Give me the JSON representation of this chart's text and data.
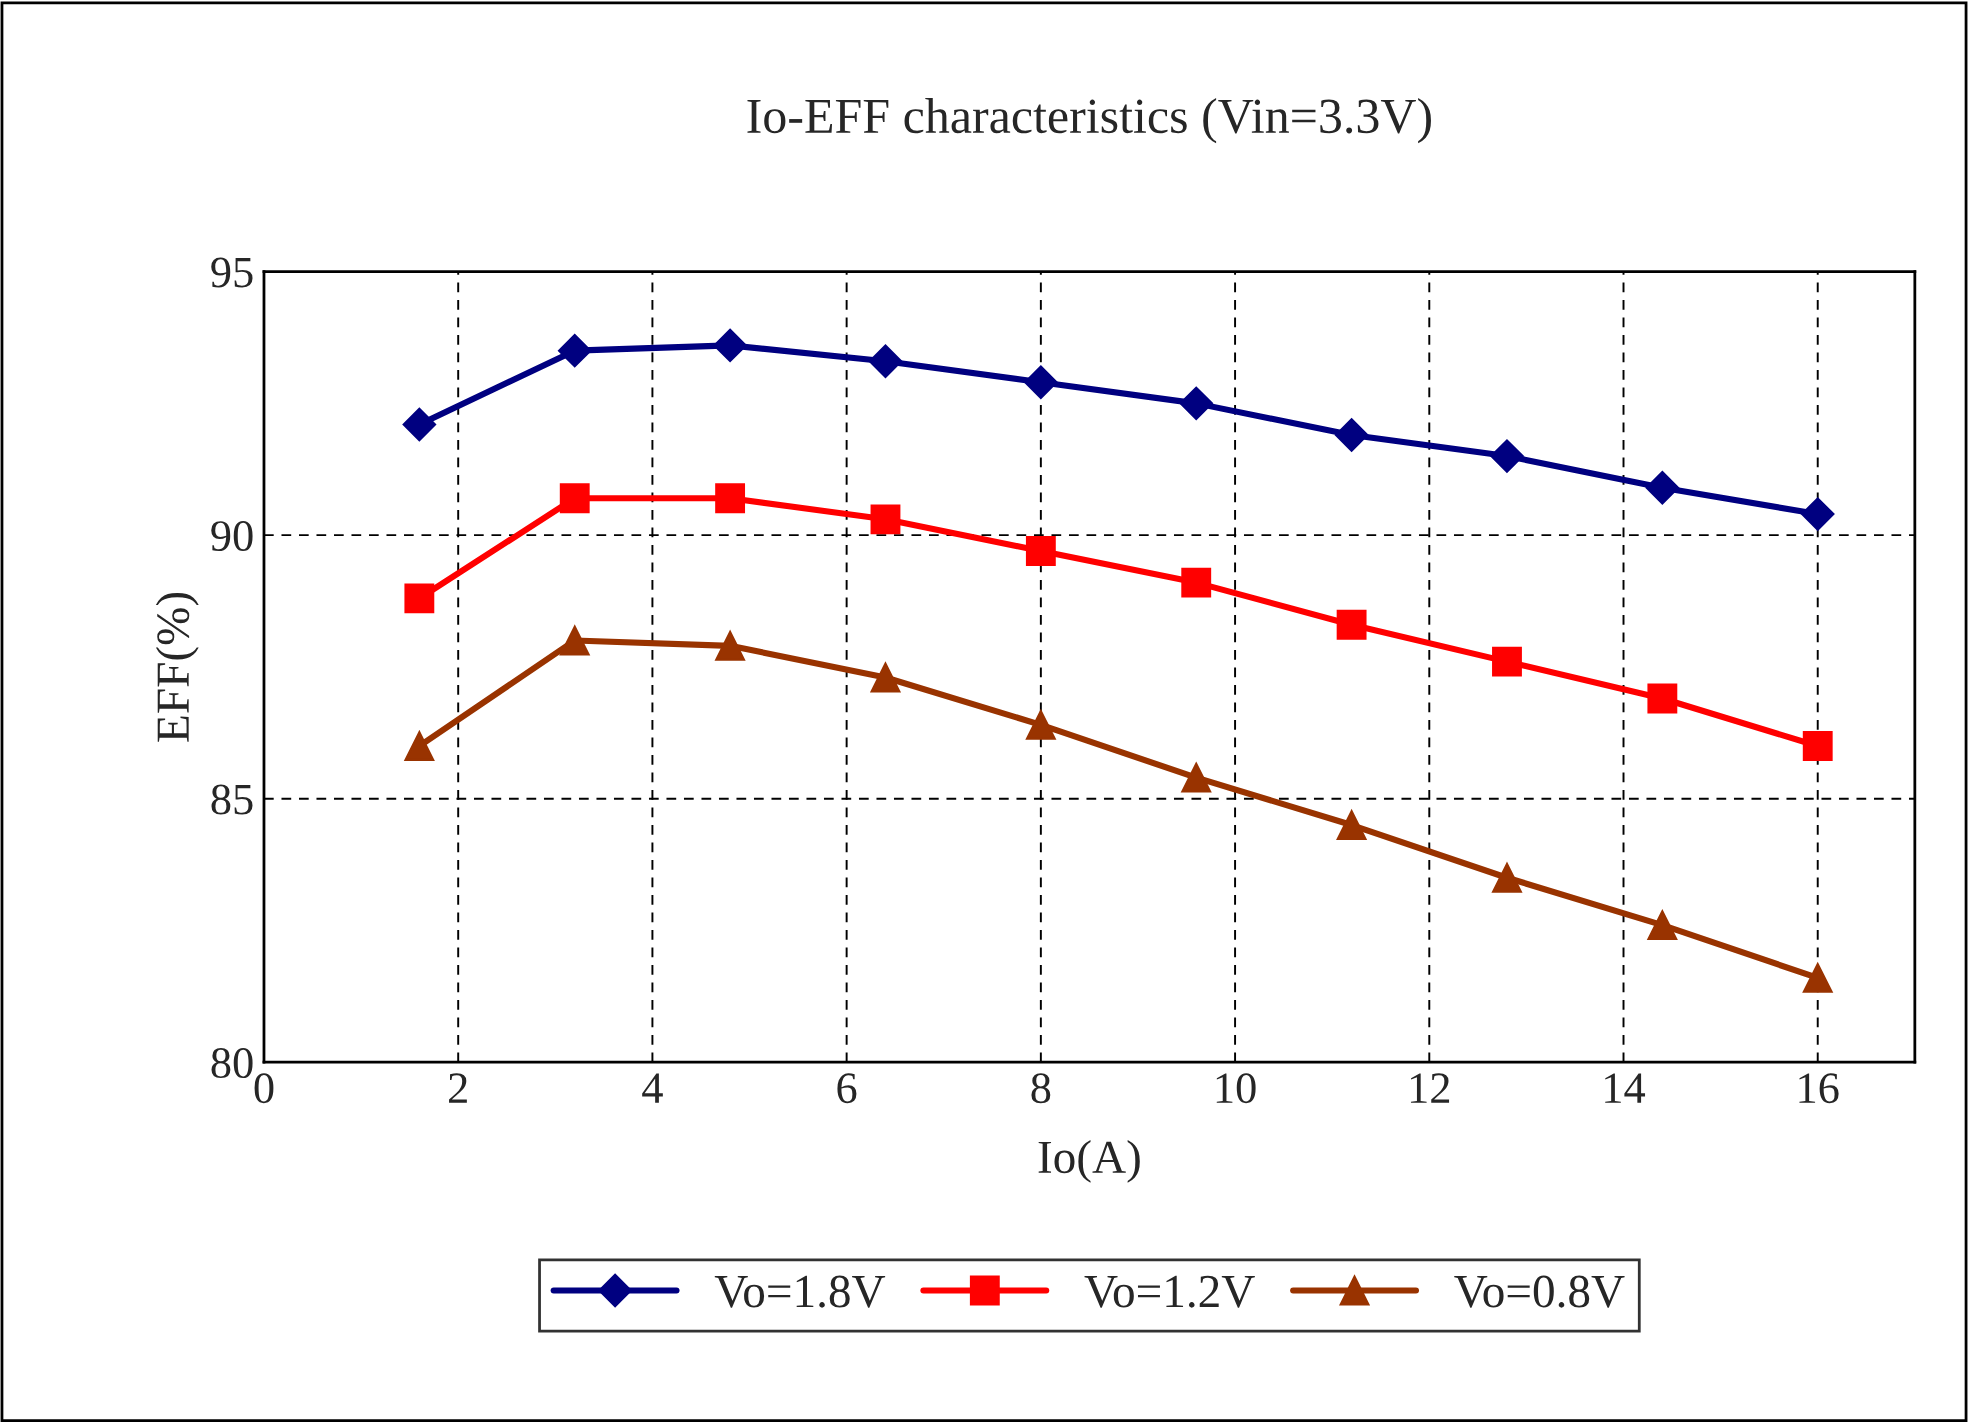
{
  "chart_data": {
    "type": "line",
    "title": "Io-EFF characteristics (Vin=3.3V)",
    "xlabel": "Io(A)",
    "ylabel": "EFF(%)",
    "x": [
      1.6,
      3.2,
      4.8,
      6.4,
      8.0,
      9.6,
      11.2,
      12.8,
      14.4,
      16.0
    ],
    "series": [
      {
        "name": "Vo=1.8V",
        "color": "#000080",
        "marker": "diamond",
        "values": [
          92.1,
          93.5,
          93.6,
          93.3,
          92.9,
          92.5,
          91.9,
          91.5,
          90.9,
          90.4
        ]
      },
      {
        "name": "Vo=1.2V",
        "color": "#ff0000",
        "marker": "square",
        "values": [
          88.8,
          90.7,
          90.7,
          90.3,
          89.7,
          89.1,
          88.3,
          87.6,
          86.9,
          86.0
        ]
      },
      {
        "name": "Vo=0.8V",
        "color": "#993300",
        "marker": "triangle",
        "values": [
          86.0,
          88.0,
          87.9,
          87.3,
          86.4,
          85.4,
          84.5,
          83.5,
          82.6,
          81.6
        ]
      }
    ],
    "xlim": [
      0,
      17
    ],
    "xticks": [
      0,
      2,
      4,
      6,
      8,
      10,
      12,
      14,
      16
    ],
    "ylim": [
      80,
      95
    ],
    "yticks": [
      80,
      85,
      90,
      95
    ],
    "grid": true,
    "line_style": "solid",
    "legend": "bottom"
  }
}
